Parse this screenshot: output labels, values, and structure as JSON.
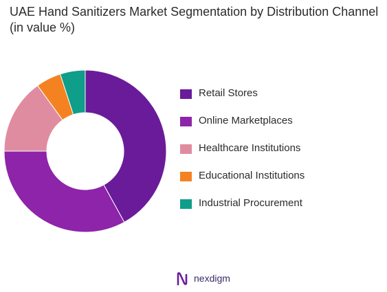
{
  "chart_data": {
    "type": "pie",
    "style": "donut",
    "title": "UAE Hand Sanitizers Market Segmentation by Distribution Channel (in value %)",
    "categories": [
      "Retail Stores",
      "Online Marketplaces",
      "Healthcare Institutions",
      "Educational Institutions",
      "Industrial Procurement"
    ],
    "values": [
      42,
      33,
      15,
      5,
      5
    ],
    "colors": [
      "#6a1b9a",
      "#8e24aa",
      "#e08ca0",
      "#f58220",
      "#0e9e8a"
    ],
    "legend": "right"
  },
  "brand": {
    "name": "nexdigm",
    "logo_icon": "nexdigm-logo-icon"
  }
}
